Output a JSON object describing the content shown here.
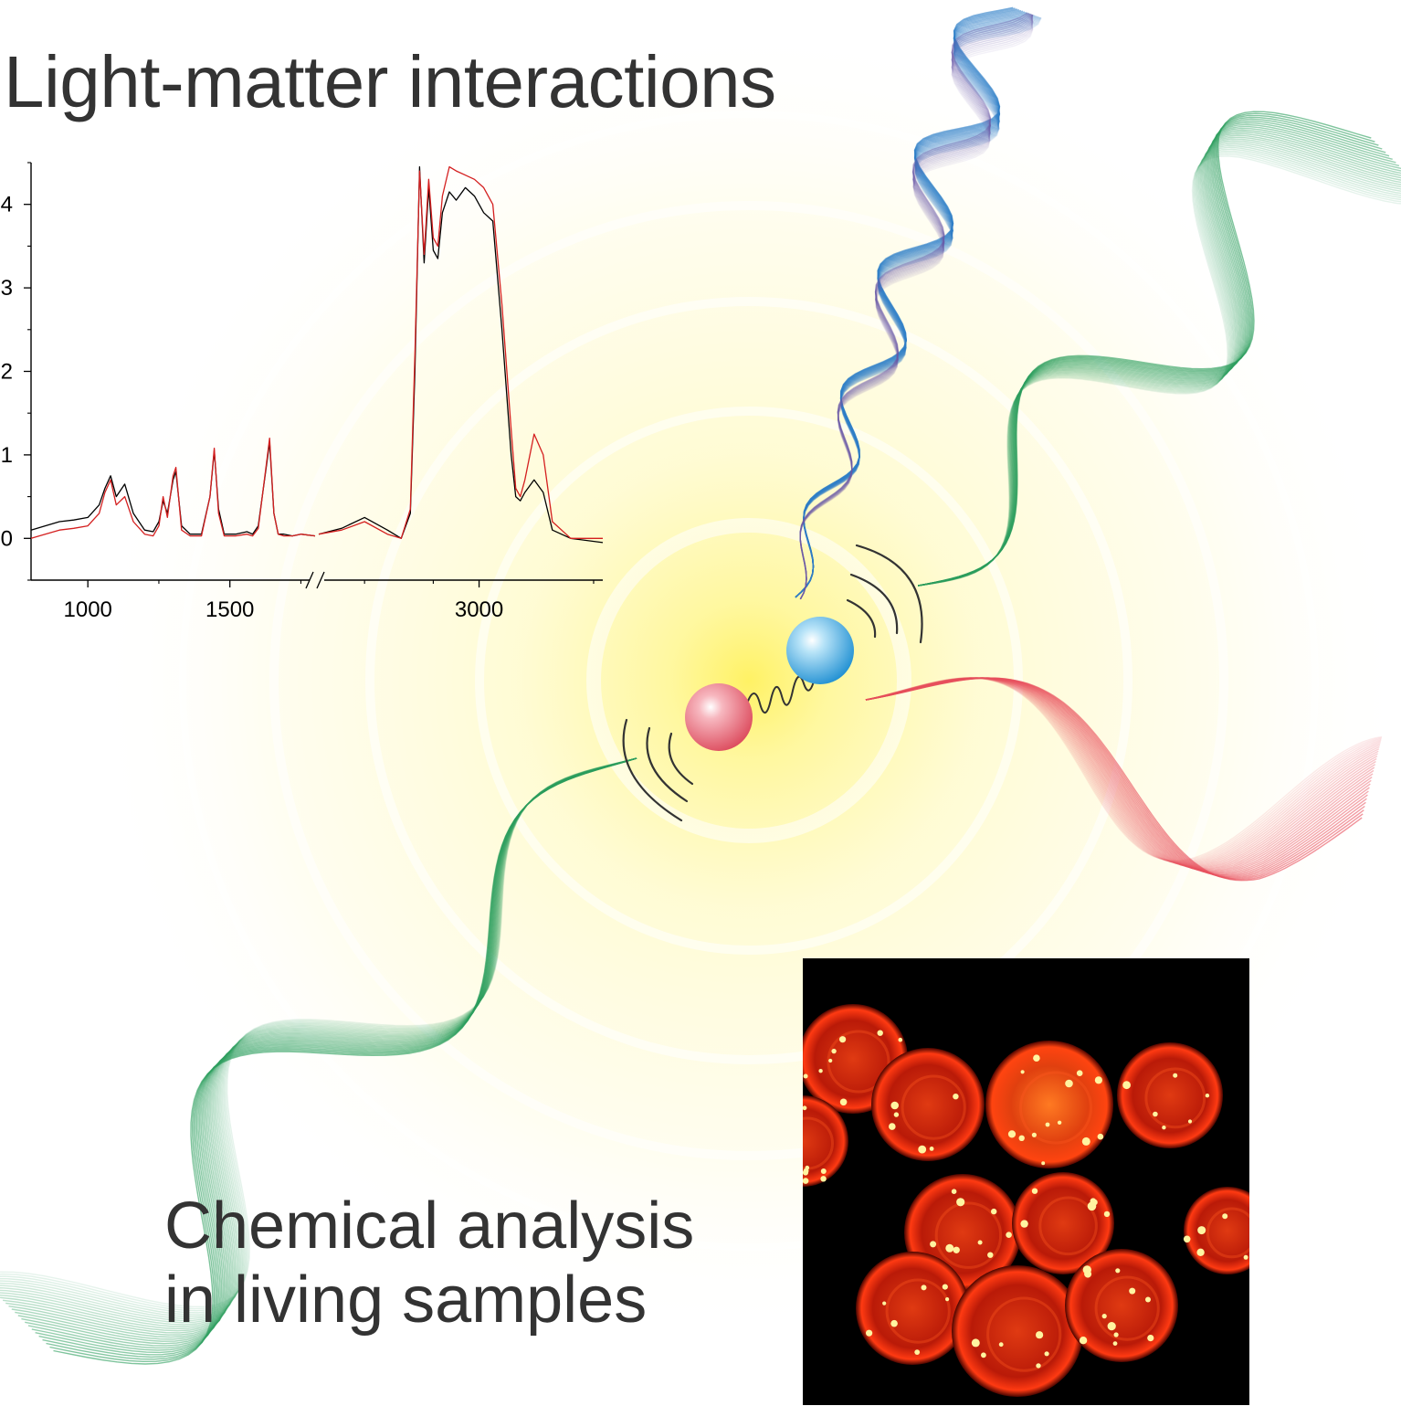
{
  "title": "Light-matter interactions",
  "caption": {
    "line1": "Chemical analysis",
    "line2": "in living samples"
  },
  "colors": {
    "glow": "#fff27a",
    "green_wave": "#2e9f5f",
    "red_wave": "#e8515e",
    "blue_wave": "#2f7fc8",
    "violet_wave": "#6b5ba8",
    "atom_red": "#e86a78",
    "atom_blue": "#4ab3e6",
    "spectrum_black": "#000000",
    "spectrum_red": "#d41f1f",
    "micrograph_bg": "#000000",
    "cell_color": "#c81e0a"
  },
  "chart_data": {
    "type": "line",
    "xlabel": "",
    "ylabel": "",
    "x_axis_broken": true,
    "x_ticks": [
      "1000",
      "1500",
      "3000"
    ],
    "y_ticks": [
      "0",
      "1",
      "2",
      "3",
      "4"
    ],
    "ylim": [
      -0.5,
      4.5
    ],
    "segments": [
      {
        "xlim": [
          800,
          1800
        ]
      },
      {
        "xlim": [
          2650,
          3270
        ]
      }
    ],
    "series": [
      {
        "color": "#000000",
        "x": [
          800,
          850,
          900,
          950,
          1000,
          1040,
          1060,
          1080,
          1100,
          1130,
          1160,
          1200,
          1230,
          1250,
          1265,
          1280,
          1300,
          1310,
          1330,
          1360,
          1400,
          1430,
          1445,
          1460,
          1480,
          1520,
          1560,
          1580,
          1600,
          1640,
          1655,
          1670,
          1690,
          1720,
          1750,
          1800,
          2650,
          2700,
          2750,
          2800,
          2830,
          2850,
          2860,
          2870,
          2880,
          2890,
          2900,
          2910,
          2920,
          2935,
          2950,
          2970,
          2990,
          3010,
          3030,
          3050,
          3070,
          3080,
          3090,
          3100,
          3120,
          3140,
          3160,
          3200,
          3270
        ],
        "y": [
          0.1,
          0.15,
          0.2,
          0.22,
          0.25,
          0.4,
          0.6,
          0.75,
          0.5,
          0.65,
          0.3,
          0.1,
          0.08,
          0.2,
          0.45,
          0.3,
          0.7,
          0.8,
          0.15,
          0.05,
          0.05,
          0.5,
          1.05,
          0.35,
          0.05,
          0.05,
          0.08,
          0.05,
          0.15,
          1.15,
          0.3,
          0.05,
          0.05,
          0.03,
          0.05,
          0.03,
          0.05,
          0.12,
          0.25,
          0.1,
          0.0,
          0.3,
          2.0,
          4.45,
          3.3,
          4.2,
          3.45,
          3.35,
          3.9,
          4.15,
          4.05,
          4.2,
          4.1,
          3.9,
          3.8,
          2.5,
          1.0,
          0.5,
          0.45,
          0.55,
          0.7,
          0.55,
          0.1,
          0.0,
          -0.05
        ]
      },
      {
        "color": "#d41f1f",
        "x": [
          800,
          850,
          900,
          950,
          1000,
          1040,
          1060,
          1080,
          1100,
          1130,
          1160,
          1200,
          1230,
          1250,
          1265,
          1280,
          1300,
          1310,
          1330,
          1360,
          1400,
          1430,
          1445,
          1460,
          1480,
          1520,
          1560,
          1580,
          1600,
          1640,
          1655,
          1670,
          1690,
          1720,
          1750,
          1800,
          2650,
          2700,
          2750,
          2800,
          2830,
          2850,
          2860,
          2870,
          2880,
          2890,
          2900,
          2910,
          2920,
          2935,
          2950,
          2970,
          2990,
          3010,
          3030,
          3050,
          3070,
          3080,
          3090,
          3100,
          3120,
          3140,
          3160,
          3200,
          3270
        ],
        "y": [
          0.0,
          0.05,
          0.1,
          0.12,
          0.15,
          0.3,
          0.55,
          0.7,
          0.4,
          0.5,
          0.2,
          0.05,
          0.03,
          0.15,
          0.5,
          0.25,
          0.75,
          0.85,
          0.1,
          0.03,
          0.03,
          0.5,
          1.08,
          0.3,
          0.03,
          0.03,
          0.05,
          0.03,
          0.12,
          1.2,
          0.3,
          0.05,
          0.03,
          0.03,
          0.05,
          0.03,
          0.05,
          0.1,
          0.2,
          0.05,
          0.0,
          0.35,
          2.2,
          4.4,
          3.4,
          4.3,
          3.6,
          3.5,
          4.1,
          4.45,
          4.4,
          4.35,
          4.3,
          4.2,
          4.0,
          2.8,
          1.3,
          0.6,
          0.5,
          0.7,
          1.25,
          1.0,
          0.2,
          0.0,
          0.0
        ]
      }
    ]
  }
}
